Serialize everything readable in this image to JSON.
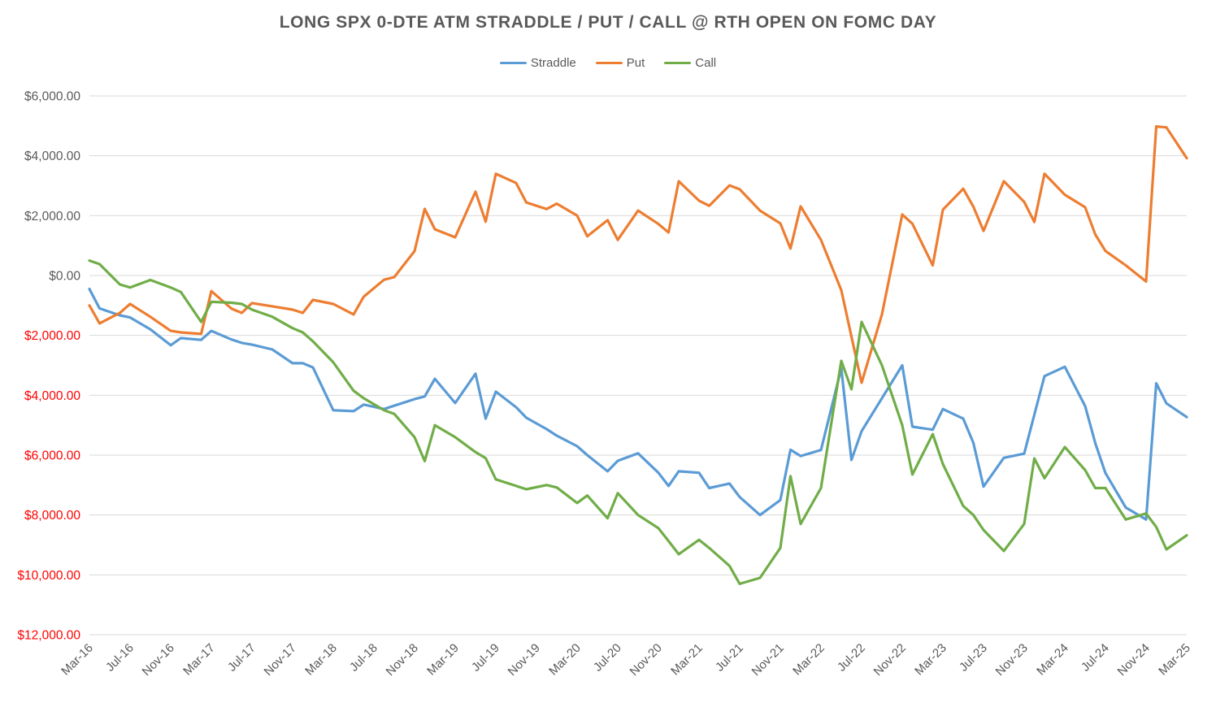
{
  "title": "LONG SPX 0-DTE ATM STRADDLE / PUT / CALL @ RTH OPEN ON FOMC DAY",
  "legend": [
    {
      "label": "Straddle",
      "color": "#5B9BD5"
    },
    {
      "label": "Put",
      "color": "#ED7D31"
    },
    {
      "label": "Call",
      "color": "#70AD47"
    }
  ],
  "colors": {
    "straddle": "#5B9BD5",
    "put": "#ED7D31",
    "call": "#70AD47",
    "gridline": "#D9D9D9",
    "axis_text": "#595959",
    "negative_axis_text": "#FF0000",
    "title_text": "#595959",
    "background": "#FFFFFF"
  },
  "chart_data": {
    "type": "line",
    "title": "LONG SPX 0-DTE ATM STRADDLE / PUT / CALL @ RTH OPEN ON FOMC DAY",
    "xlabel": "",
    "ylabel": "",
    "legend_position": "top",
    "grid": true,
    "ylim": [
      -12000,
      6000
    ],
    "y_tick_step": 2000,
    "y_ticks": [
      {
        "value": 6000,
        "label": "$6,000.00",
        "color": "#595959"
      },
      {
        "value": 4000,
        "label": "$4,000.00",
        "color": "#595959"
      },
      {
        "value": 2000,
        "label": "$2,000.00",
        "color": "#595959"
      },
      {
        "value": 0,
        "label": "$0.00",
        "color": "#595959"
      },
      {
        "value": -2000,
        "label": "$2,000.00",
        "color": "#FF0000"
      },
      {
        "value": -4000,
        "label": "$4,000.00",
        "color": "#FF0000"
      },
      {
        "value": -6000,
        "label": "$6,000.00",
        "color": "#FF0000"
      },
      {
        "value": -8000,
        "label": "$8,000.00",
        "color": "#FF0000"
      },
      {
        "value": -10000,
        "label": "$10,000.00",
        "color": "#FF0000"
      },
      {
        "value": -12000,
        "label": "$12,000.00",
        "color": "#FF0000"
      }
    ],
    "x_axis_tick_labels": [
      "Mar-16",
      "Jul-16",
      "Nov-16",
      "Mar-17",
      "Jul-17",
      "Nov-17",
      "Mar-18",
      "Jul-18",
      "Nov-18",
      "Mar-19",
      "Jul-19",
      "Nov-19",
      "Mar-20",
      "Jul-20",
      "Nov-20",
      "Mar-21",
      "Jul-21",
      "Nov-21",
      "Mar-22",
      "Jul-22",
      "Nov-22",
      "Mar-23",
      "Jul-23",
      "Nov-23",
      "Mar-24",
      "Jul-24",
      "Nov-24",
      "Mar-25"
    ],
    "x_tick_month_interval": 4,
    "x_month_range": [
      0,
      108
    ],
    "x_note": "x values are FOMC meeting dates expressed as months since Mar-2016",
    "x_point_labels": [
      "Mar-16",
      "Apr-16",
      "Jun-16",
      "Jul-16",
      "Sep-16",
      "Nov-16",
      "Dec-16",
      "Feb-17",
      "Mar-17",
      "May-17",
      "Jun-17",
      "Jul-17",
      "Sep-17",
      "Nov-17",
      "Dec-17",
      "Jan-18",
      "Mar-18",
      "May-18",
      "Jun-18",
      "Aug-18",
      "Sep-18",
      "Nov-18",
      "Dec-18",
      "Jan-19",
      "Mar-19",
      "May-19",
      "Jun-19",
      "Jul-19",
      "Sep-19",
      "Oct-19",
      "Dec-19",
      "Jan-20",
      "Mar-20",
      "Apr-20",
      "Jun-20",
      "Jul-20",
      "Sep-20",
      "Nov-20",
      "Dec-20",
      "Jan-21",
      "Mar-21",
      "Apr-21",
      "Jun-21",
      "Jul-21",
      "Sep-21",
      "Nov-21",
      "Dec-21",
      "Jan-22",
      "Mar-22",
      "May-22",
      "Jun-22",
      "Jul-22",
      "Sep-22",
      "Nov-22",
      "Dec-22",
      "Feb-23",
      "Mar-23",
      "May-23",
      "Jun-23",
      "Jul-23",
      "Sep-23",
      "Nov-23",
      "Dec-23",
      "Jan-24",
      "Mar-24",
      "May-24",
      "Jun-24",
      "Jul-24",
      "Sep-24",
      "Nov-24",
      "Dec-24",
      "Jan-25",
      "Mar-25"
    ],
    "x_months": [
      0,
      1,
      3,
      4,
      6,
      8,
      9,
      11,
      12,
      14,
      15,
      16,
      18,
      20,
      21,
      22,
      24,
      26,
      27,
      29,
      30,
      32,
      33,
      34,
      36,
      38,
      39,
      40,
      42,
      43,
      45,
      46,
      48,
      49,
      51,
      52,
      54,
      56,
      57,
      58,
      60,
      61,
      63,
      64,
      66,
      68,
      69,
      70,
      72,
      74,
      75,
      76,
      78,
      80,
      81,
      83,
      84,
      86,
      87,
      88,
      90,
      92,
      93,
      94,
      96,
      98,
      99,
      100,
      102,
      104,
      105,
      106,
      108
    ],
    "series": [
      {
        "name": "Straddle",
        "color": "#5B9BD5",
        "values": [
          -450,
          -1100,
          -1330,
          -1400,
          -1800,
          -2330,
          -2090,
          -2150,
          -1850,
          -2140,
          -2250,
          -2310,
          -2470,
          -2930,
          -2930,
          -3070,
          -4500,
          -4530,
          -4310,
          -4460,
          -4350,
          -4130,
          -4040,
          -3450,
          -4260,
          -3280,
          -4780,
          -3880,
          -4400,
          -4750,
          -5130,
          -5350,
          -5700,
          -6000,
          -6540,
          -6190,
          -5940,
          -6590,
          -7030,
          -6540,
          -6590,
          -7100,
          -6950,
          -7400,
          -8000,
          -7500,
          -5820,
          -6030,
          -5830,
          -3100,
          -6160,
          -5200,
          -4100,
          -3000,
          -5050,
          -5150,
          -4460,
          -4780,
          -5590,
          -7050,
          -6090,
          -5950,
          -4650,
          -3360,
          -3050,
          -4360,
          -5600,
          -6600,
          -7750,
          -8150,
          -3600,
          -4270,
          -4730
        ]
      },
      {
        "name": "Put",
        "color": "#ED7D31",
        "values": [
          -1000,
          -1600,
          -1250,
          -950,
          -1380,
          -1850,
          -1900,
          -1950,
          -520,
          -1110,
          -1250,
          -920,
          -1030,
          -1140,
          -1250,
          -815,
          -950,
          -1300,
          -705,
          -140,
          -55,
          815,
          2225,
          1545,
          1275,
          2800,
          1800,
          3400,
          3090,
          2440,
          2220,
          2400,
          2000,
          1310,
          1850,
          1190,
          2170,
          1720,
          1440,
          3150,
          2500,
          2330,
          3010,
          2880,
          2170,
          1740,
          900,
          2310,
          1190,
          -490,
          -2040,
          -3580,
          -1300,
          2040,
          1730,
          340,
          2200,
          2900,
          2300,
          1490,
          3150,
          2460,
          1790,
          3400,
          2700,
          2280,
          1370,
          820,
          340,
          -200,
          4980,
          4950,
          3920
        ]
      },
      {
        "name": "Call",
        "color": "#70AD47",
        "values": [
          500,
          380,
          -300,
          -400,
          -150,
          -400,
          -550,
          -1550,
          -880,
          -910,
          -950,
          -1140,
          -1380,
          -1760,
          -1900,
          -2200,
          -2900,
          -3850,
          -4100,
          -4500,
          -4620,
          -5400,
          -6200,
          -5000,
          -5400,
          -5900,
          -6100,
          -6810,
          -7030,
          -7140,
          -7000,
          -7080,
          -7600,
          -7350,
          -8110,
          -7270,
          -8000,
          -8440,
          -8870,
          -9310,
          -8830,
          -9100,
          -9700,
          -10300,
          -10100,
          -9100,
          -6700,
          -8300,
          -7100,
          -2850,
          -3800,
          -1550,
          -3000,
          -5000,
          -6650,
          -5300,
          -6300,
          -7700,
          -8000,
          -8500,
          -9200,
          -8300,
          -6110,
          -6770,
          -5730,
          -6500,
          -7100,
          -7100,
          -8150,
          -7950,
          -8400,
          -9150,
          -8680
        ]
      }
    ]
  }
}
